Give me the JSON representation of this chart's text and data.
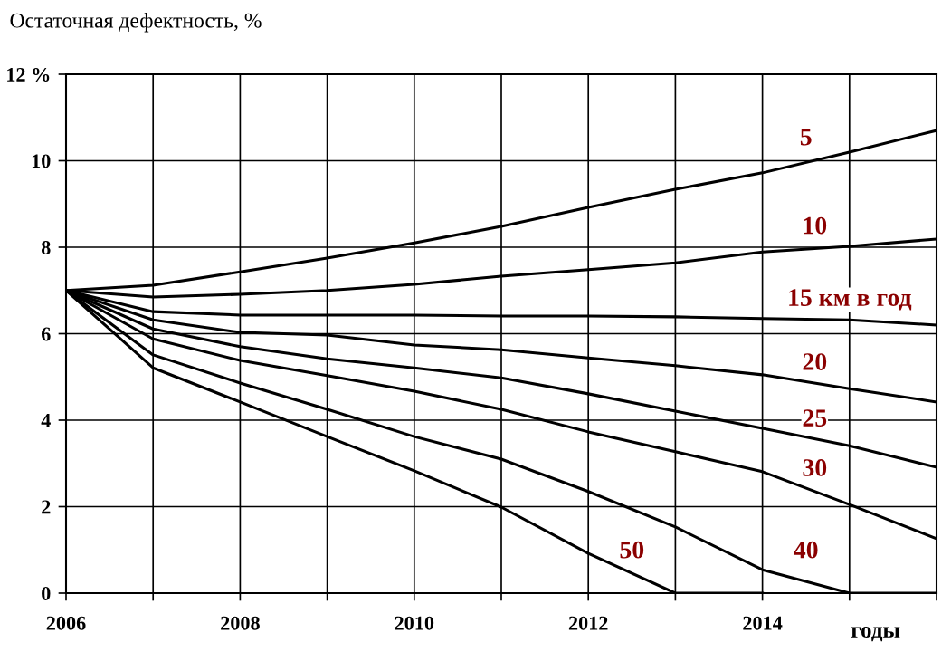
{
  "chart_data": {
    "type": "line",
    "ylabel": "Остаточная дефектность, %",
    "xlabel": "годы",
    "x": [
      2006,
      2007,
      2008,
      2009,
      2010,
      2011,
      2012,
      2013,
      2014,
      2015,
      2016
    ],
    "series": [
      {
        "color": "#000000",
        "values": [
          7.0,
          7.12,
          7.43,
          7.75,
          8.1,
          8.48,
          8.92,
          9.34,
          9.72,
          10.2,
          10.7
        ]
      },
      {
        "color": "#000000",
        "values": [
          7.0,
          6.85,
          6.91,
          7.0,
          7.14,
          7.33,
          7.48,
          7.64,
          7.89,
          8.02,
          8.19
        ]
      },
      {
        "color": "#000000",
        "values": [
          7.0,
          6.51,
          6.43,
          6.43,
          6.43,
          6.41,
          6.41,
          6.39,
          6.35,
          6.32,
          6.2
        ]
      },
      {
        "color": "#000000",
        "values": [
          7.0,
          6.32,
          6.03,
          5.97,
          5.74,
          5.63,
          5.44,
          5.26,
          5.05,
          4.73,
          4.42
        ]
      },
      {
        "color": "#000000",
        "values": [
          7.0,
          6.11,
          5.7,
          5.42,
          5.21,
          4.98,
          4.61,
          4.21,
          3.81,
          3.41,
          2.91
        ]
      },
      {
        "color": "#000000",
        "values": [
          7.0,
          5.88,
          5.38,
          5.03,
          4.67,
          4.25,
          3.73,
          3.27,
          2.81,
          2.05,
          1.26
        ]
      },
      {
        "color": "#000000",
        "values": [
          7.0,
          5.51,
          4.86,
          4.25,
          3.62,
          3.1,
          2.35,
          1.53,
          0.54,
          0,
          0
        ]
      },
      {
        "color": "#000000",
        "values": [
          7.0,
          5.21,
          4.42,
          3.62,
          2.83,
          1.99,
          0.92,
          0,
          0,
          null,
          null
        ]
      }
    ],
    "annotations": [
      {
        "text": "5",
        "x": 2014.5,
        "y": 10.5
      },
      {
        "text": "10",
        "x": 2014.6,
        "y": 8.45
      },
      {
        "text": "15 км в год",
        "x": 2015,
        "y": 6.32
      },
      {
        "text": "20",
        "x": 2014.6,
        "y": 5.3
      },
      {
        "text": "25",
        "x": 2014.6,
        "y": 4.0
      },
      {
        "text": "30",
        "x": 2014.6,
        "y": 2.85
      },
      {
        "text": "50",
        "x": 2012.5,
        "y": 0.95
      },
      {
        "text": "40",
        "x": 2014.5,
        "y": 0.95
      }
    ],
    "xlim": [
      2006,
      2016
    ],
    "ylim": [
      0,
      12
    ],
    "xticks": [
      2006,
      {
        "value": 2007,
        "label": null
      },
      2008,
      {
        "value": 2009,
        "label": null
      },
      2010,
      {
        "value": 2011,
        "label": null
      },
      2012,
      {
        "value": 2013,
        "label": null
      },
      2014,
      {
        "value": 2015,
        "label": null
      },
      {
        "value": 2016,
        "label": null
      }
    ],
    "yticks": [
      0,
      2,
      4,
      6,
      8,
      10,
      {
        "value": 12,
        "label": "12 %"
      }
    ],
    "grid": true,
    "marker": "none",
    "line_style": "solid"
  }
}
